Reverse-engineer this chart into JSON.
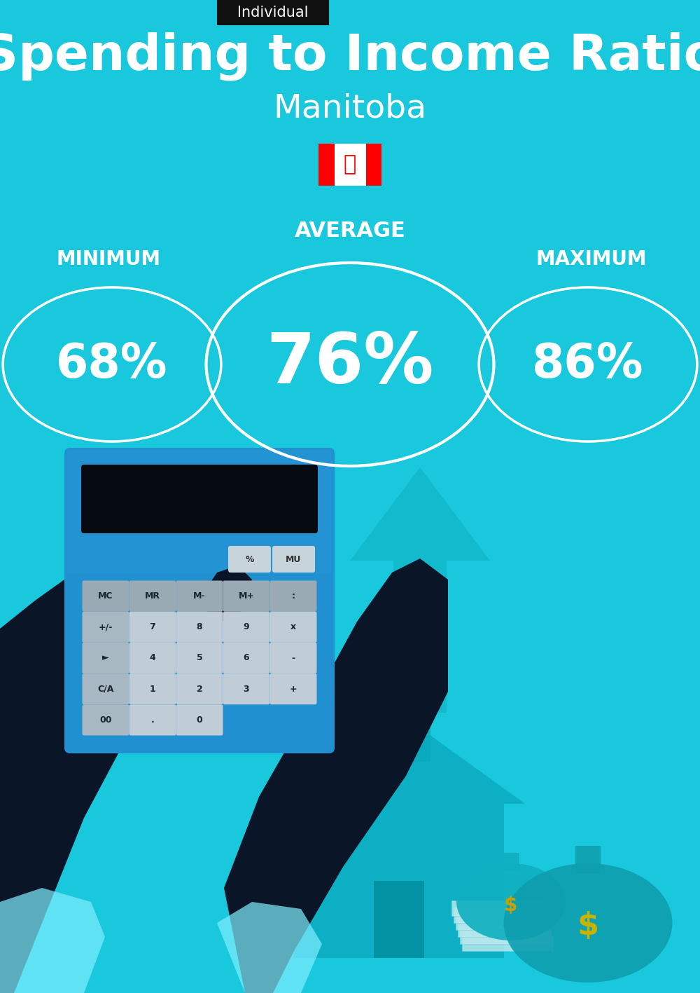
{
  "bg_color": "#19C8DC",
  "title": "Spending to Income Ratio",
  "subtitle": "Manitoba",
  "tag_text": "Individual",
  "tag_bg": "#111111",
  "tag_text_color": "#ffffff",
  "title_color": "#ffffff",
  "subtitle_color": "#ffffff",
  "min_label": "MINIMUM",
  "avg_label": "AVERAGE",
  "max_label": "MAXIMUM",
  "min_value": "68%",
  "avg_value": "76%",
  "max_value": "86%",
  "label_color": "#ffffff",
  "value_color": "#ffffff",
  "circle_color": "#ffffff",
  "figsize": [
    10.0,
    14.17
  ],
  "dpi": 100
}
